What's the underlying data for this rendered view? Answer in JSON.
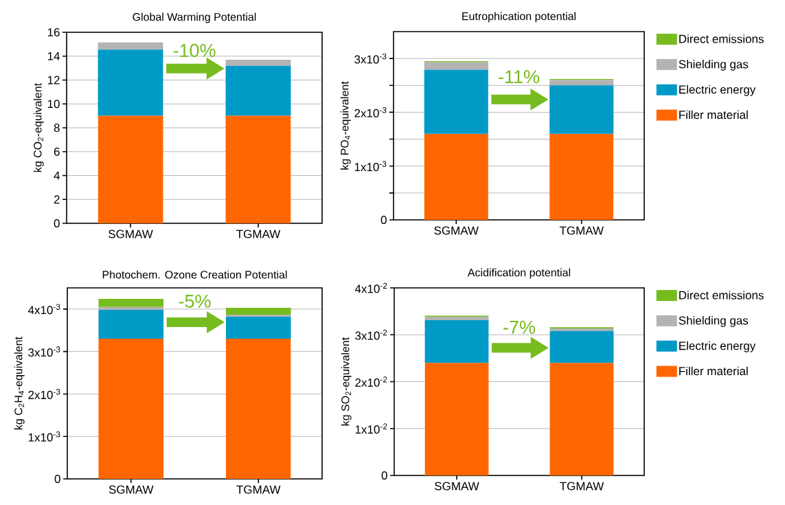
{
  "chart_data": [
    {
      "type": "bar",
      "stacked": true,
      "title": "Global Warming Potential",
      "ylabel": "kg CO$_{2}$-equivalent",
      "categories": [
        "SGMAW",
        "TGMAW"
      ],
      "series": [
        {
          "color": "#ff6600",
          "values": [
            9.0,
            9.0
          ]
        },
        {
          "color": "#009ac7",
          "values": [
            5.55,
            4.2
          ]
        },
        {
          "color": "#b3b3b3",
          "values": [
            0.6,
            0.5
          ]
        }
      ],
      "ylim": [
        0,
        16
      ],
      "yticks": [
        0,
        2,
        4,
        6,
        8,
        10,
        12,
        14,
        16
      ],
      "grid": "y",
      "legend": false,
      "annotations": [
        "-10%"
      ]
    },
    {
      "type": "bar",
      "stacked": true,
      "title": "Eutrophication potential",
      "ylabel": "kg PO$_{4}$-equivalent",
      "categories": [
        "SGMAW",
        "TGMAW"
      ],
      "series": [
        {
          "name": "Filler material",
          "color": "#ff6600",
          "values": [
            0.0016,
            0.0016
          ]
        },
        {
          "name": "Electric energy",
          "color": "#009ac7",
          "values": [
            0.00119,
            0.0009
          ]
        },
        {
          "name": "Shielding gas",
          "color": "#b3b3b3",
          "values": [
            0.00014,
            0.0001
          ]
        },
        {
          "name": "Direct emissions",
          "color": "#77bc1f",
          "values": [
            2e-05,
            2e-05
          ]
        }
      ],
      "ylim": [
        0,
        0.0035
      ],
      "yticks": [
        0,
        {
          "value": 0.0005,
          "label": null
        },
        {
          "value": 0.001,
          "label": "1x10$^{-3}$"
        },
        {
          "value": 0.0015,
          "label": null
        },
        {
          "value": 0.002,
          "label": "2x10$^{-3}$"
        },
        {
          "value": 0.0025,
          "label": null
        },
        {
          "value": 0.003,
          "label": "3x10$^{-3}$"
        }
      ],
      "grid": "y",
      "legend": "right",
      "annotations": [
        "-11%"
      ]
    },
    {
      "type": "bar",
      "stacked": true,
      "title": "Photochem. Ozone Creation Potential",
      "ylabel": "kg C$_{2}$H$_{4}$-equivalent",
      "categories": [
        "SGMAW",
        "TGMAW"
      ],
      "series": [
        {
          "color": "#ff6600",
          "values": [
            0.0033,
            0.0033
          ]
        },
        {
          "color": "#009ac7",
          "values": [
            0.00068,
            0.00052
          ]
        },
        {
          "color": "#b3b3b3",
          "values": [
            7e-05,
            5e-05
          ]
        },
        {
          "color": "#77bc1f",
          "values": [
            0.00019,
            0.00016
          ]
        }
      ],
      "ylim": [
        0,
        0.0045
      ],
      "yticks": [
        0,
        {
          "value": 0.001,
          "label": "1x10$^{-3}$"
        },
        {
          "value": 0.002,
          "label": "2x10$^{-3}$"
        },
        {
          "value": 0.003,
          "label": "3x10$^{-3}$"
        },
        {
          "value": 0.004,
          "label": "4x10$^{-3}$"
        }
      ],
      "grid": "y",
      "legend": false,
      "annotations": [
        "-5%"
      ]
    },
    {
      "type": "bar",
      "stacked": true,
      "title": "Acidification potential",
      "ylabel": "kg SO$_{2}$-equivalent",
      "categories": [
        "SGMAW",
        "TGMAW"
      ],
      "series": [
        {
          "name": "Filler material",
          "color": "#ff6600",
          "values": [
            0.024,
            0.024
          ]
        },
        {
          "name": "Electric energy",
          "color": "#009ac7",
          "values": [
            0.0091,
            0.0068
          ]
        },
        {
          "name": "Shielding gas",
          "color": "#b3b3b3",
          "values": [
            0.0007,
            0.00055
          ]
        },
        {
          "name": "Direct emissions",
          "color": "#77bc1f",
          "values": [
            0.00025,
            0.00025
          ]
        }
      ],
      "ylim": [
        0,
        0.04
      ],
      "yticks": [
        0,
        {
          "value": 0.01,
          "label": "1x10$^{-2}$"
        },
        {
          "value": 0.02,
          "label": "2x10$^{-2}$"
        },
        {
          "value": 0.03,
          "label": "3x10$^{-2}$"
        },
        {
          "value": 0.04,
          "label": "4x10$^{-2}$"
        }
      ],
      "grid": "y",
      "legend": "right",
      "annotations": [
        "-7%"
      ]
    }
  ]
}
